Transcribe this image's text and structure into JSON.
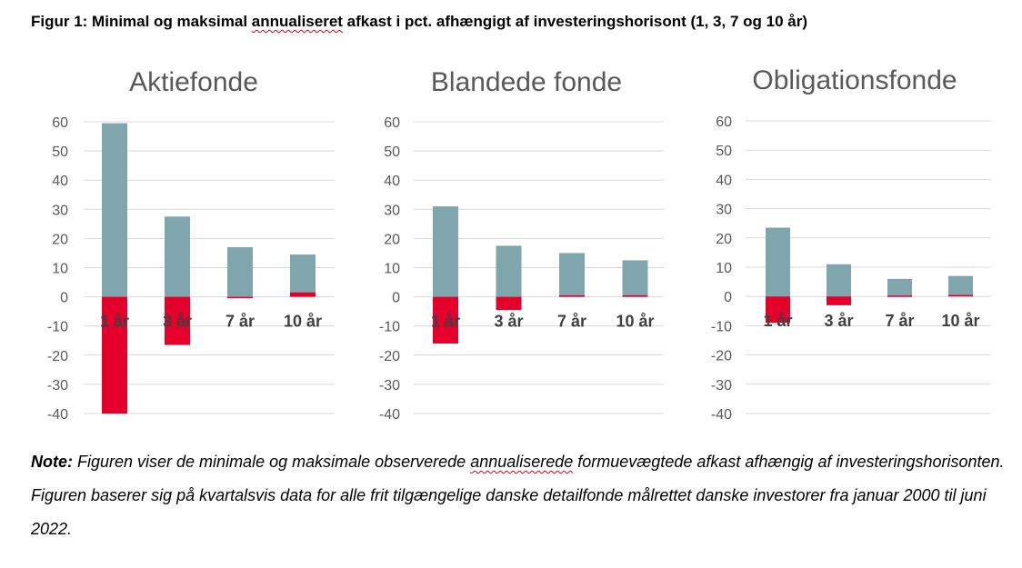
{
  "figure": {
    "title_part1": "Figur 1: Minimal og maksimal ",
    "title_underlined": "annualiseret",
    "title_part2": " afkast i pct. afhængigt af investeringshorisont (1, 3, 7 og 10 år)"
  },
  "colors": {
    "max_bar": "#7fa6ad",
    "min_bar": "#e4002b",
    "gridline": "#d9d9d9",
    "axis_text": "#595959",
    "panel_title": "#595959",
    "category_text": "#404040"
  },
  "chart_data": [
    {
      "type": "bar",
      "title": "Aktiefonde",
      "categories": [
        "1 år",
        "3 år",
        "7 år",
        "10 år"
      ],
      "series": [
        {
          "values": [
            59.5,
            27.5,
            17,
            14.5
          ]
        },
        {
          "values": [
            -40,
            -16.5,
            -0.5,
            1.5
          ]
        }
      ],
      "ylim": [
        -40,
        60
      ],
      "yticks": [
        "60",
        "50",
        "40",
        "30",
        "20",
        "10",
        "0",
        "-10",
        "-20",
        "-30",
        "-40"
      ],
      "grid": true
    },
    {
      "type": "bar",
      "title": "Blandede fonde",
      "categories": [
        "1 år",
        "3 år",
        "7 år",
        "10 år"
      ],
      "series": [
        {
          "values": [
            31,
            17.5,
            15,
            12.5
          ]
        },
        {
          "values": [
            -16,
            -4.5,
            0.5,
            0.5
          ]
        }
      ],
      "ylim": [
        -40,
        60
      ],
      "yticks": [
        "60",
        "50",
        "40",
        "30",
        "20",
        "10",
        "0",
        "-10",
        "-20",
        "-30",
        "-40"
      ],
      "grid": true
    },
    {
      "type": "bar",
      "title": "Obligationsfonde",
      "categories": [
        "1 år",
        "3 år",
        "7 år",
        "10 år"
      ],
      "series": [
        {
          "values": [
            23.5,
            11,
            6,
            7
          ]
        },
        {
          "values": [
            -9,
            -3,
            0.3,
            0.5
          ]
        }
      ],
      "ylim": [
        -40,
        60
      ],
      "yticks": [
        "60",
        "50",
        "40",
        "30",
        "20",
        "10",
        "0",
        "-10",
        "-20",
        "-30",
        "-40"
      ],
      "grid": true
    }
  ],
  "note": {
    "label": "Note:",
    "text1": " Figuren viser de minimale og maksimale observerede ",
    "text_underlined": "annualiserede",
    "text2": " formuevægtede afkast afhængig af investeringshorisonten. Figuren baserer sig på kvartalsvis data for alle frit tilgængelige danske detailfonde målrettet danske investorer fra januar 2000 til juni 2022."
  }
}
